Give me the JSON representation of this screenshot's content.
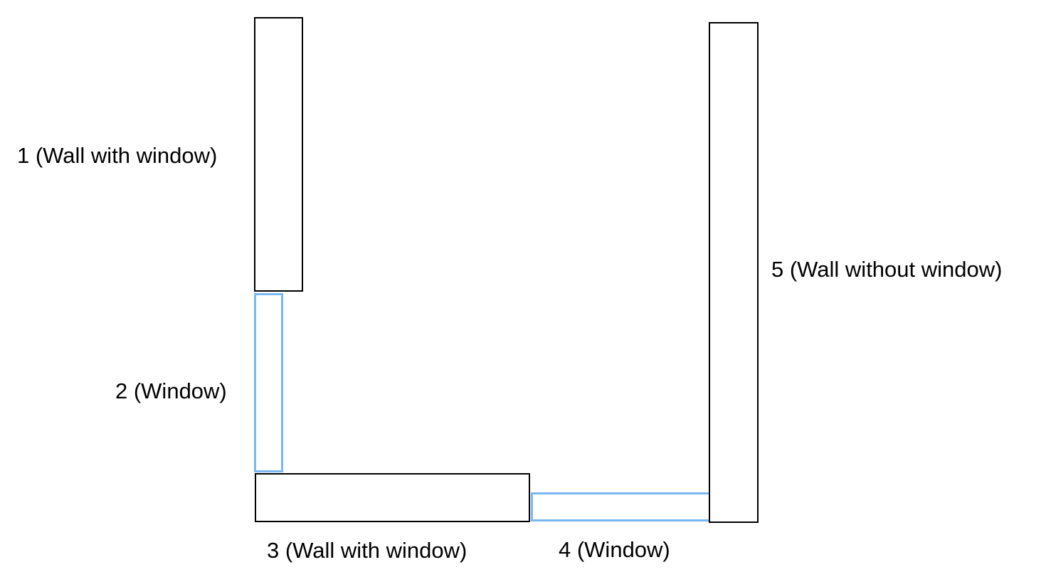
{
  "diagram": {
    "parts": [
      {
        "id": "1",
        "label": "1 (Wall with window)",
        "kind": "wall"
      },
      {
        "id": "2",
        "label": "2 (Window)",
        "kind": "window"
      },
      {
        "id": "3",
        "label": "3 (Wall with window)",
        "kind": "wall"
      },
      {
        "id": "4",
        "label": "4 (Window)",
        "kind": "window"
      },
      {
        "id": "5",
        "label": "5 (Wall without window)",
        "kind": "wall"
      }
    ]
  },
  "colors": {
    "wall_outline": "#000000",
    "window_outline": "#79b8f0",
    "background": "#ffffff"
  }
}
